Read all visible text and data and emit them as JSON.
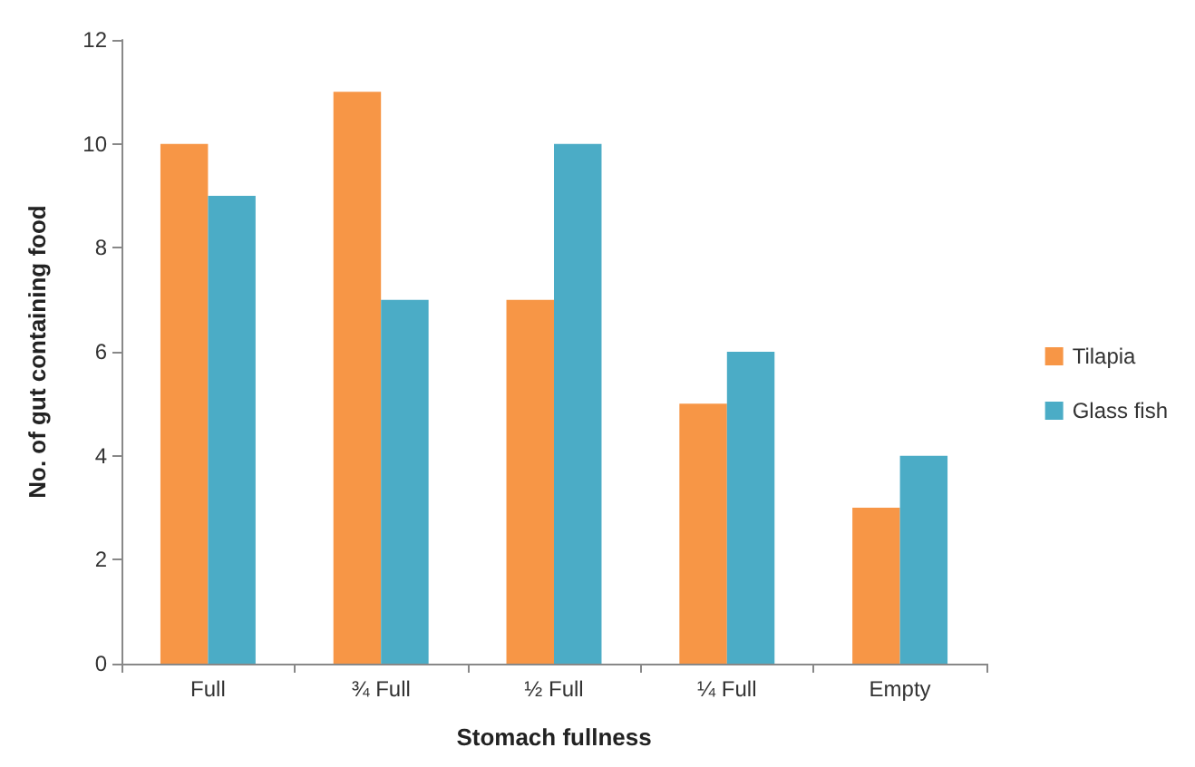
{
  "chart_data": {
    "type": "bar",
    "xlabel": "Stomach fullness",
    "ylabel": "No. of gut containing food",
    "categories": [
      "Full",
      "¾ Full",
      "½ Full",
      "¼ Full",
      "Empty"
    ],
    "series": [
      {
        "name": "Tilapia",
        "color": "#f79646",
        "values": [
          10,
          11,
          7,
          5,
          3
        ]
      },
      {
        "name": "Glass fish",
        "color": "#4bacc6",
        "values": [
          9,
          7,
          10,
          6,
          4
        ]
      }
    ],
    "ylim": [
      0,
      12
    ],
    "yticks": [
      0,
      2,
      4,
      6,
      8,
      10,
      12
    ],
    "grid": false,
    "legend": "right"
  }
}
